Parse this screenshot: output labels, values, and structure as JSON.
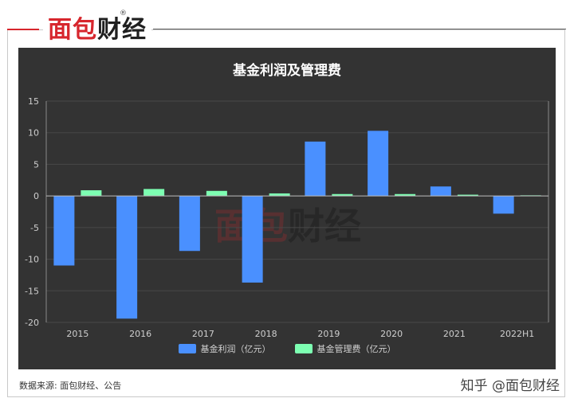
{
  "brand": {
    "part1": "面包",
    "part2": "财经",
    "reg": "®"
  },
  "watermark": {
    "part1": "面包",
    "part2": "财经"
  },
  "colors": {
    "series1": "#4a90ff",
    "series2": "#7dffb2",
    "panel": "#333333",
    "brand_red": "#d7262d"
  },
  "footer": {
    "source": "数据来源: 面包财经、公告",
    "credit": "知乎 @面包财经"
  },
  "chart_data": {
    "type": "bar",
    "title": "基金利润及管理费",
    "categories": [
      "2015",
      "2016",
      "2017",
      "2018",
      "2019",
      "2020",
      "2021",
      "2022H1"
    ],
    "series": [
      {
        "name": "基金利润（亿元）",
        "color": "#4a90ff",
        "values": [
          -11.0,
          -19.4,
          -8.7,
          -13.7,
          8.6,
          10.3,
          1.5,
          -2.8
        ]
      },
      {
        "name": "基金管理费（亿元）",
        "color": "#7dffb2",
        "values": [
          0.9,
          1.1,
          0.8,
          0.4,
          0.3,
          0.3,
          0.2,
          0.1
        ]
      }
    ],
    "ylim": [
      -20,
      15
    ],
    "yticks": [
      -20,
      -15,
      -10,
      -5,
      0,
      5,
      10,
      15
    ],
    "xlabel": "",
    "ylabel": "",
    "grid": true,
    "legend": "bottom"
  }
}
